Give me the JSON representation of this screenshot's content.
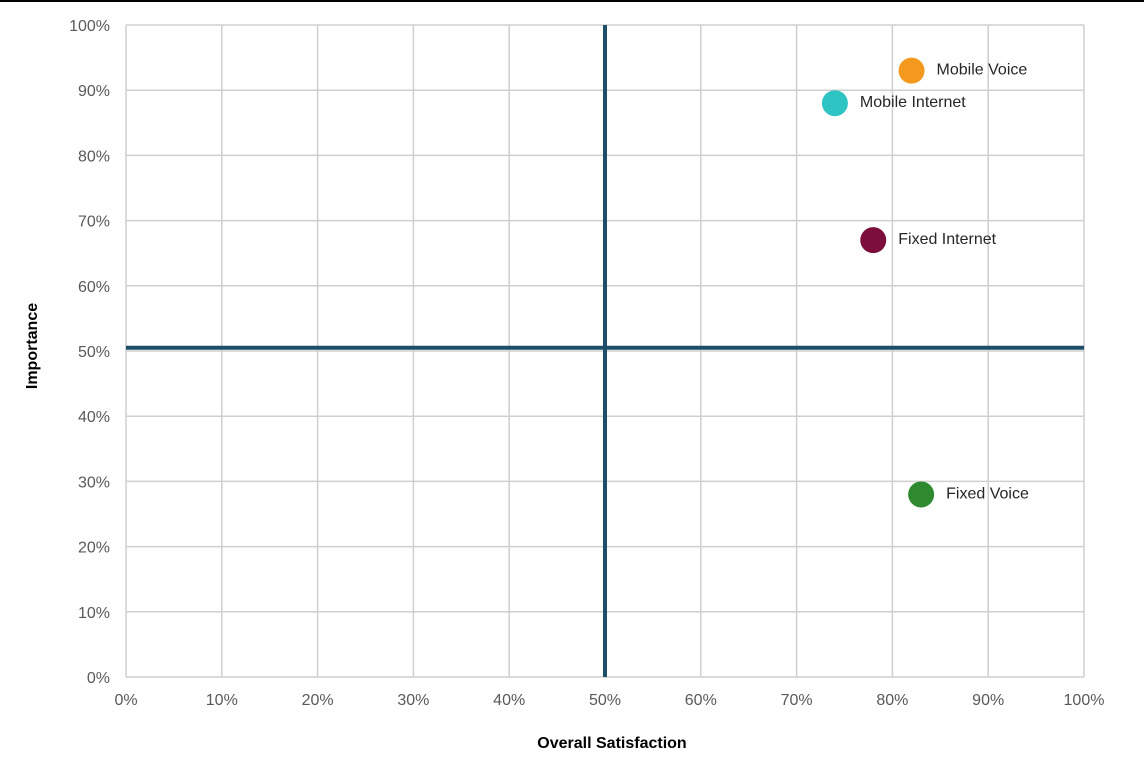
{
  "chart_data": {
    "type": "scatter",
    "title": "",
    "xlabel": "Overall Satisfaction",
    "ylabel": "Importance",
    "xlim": [
      0,
      100
    ],
    "ylim": [
      0,
      100
    ],
    "x_ticks": [
      "0%",
      "10%",
      "20%",
      "30%",
      "40%",
      "50%",
      "60%",
      "70%",
      "80%",
      "90%",
      "100%"
    ],
    "y_ticks": [
      "0%",
      "10%",
      "20%",
      "30%",
      "40%",
      "50%",
      "60%",
      "70%",
      "80%",
      "90%",
      "100%"
    ],
    "grid": true,
    "legend": "none",
    "quadrant_lines": {
      "x": 50,
      "y": 50.5,
      "color": "#1f4e6b"
    },
    "points": [
      {
        "label": "Mobile Voice",
        "x": 82,
        "y": 93,
        "color": "#f39a1e"
      },
      {
        "label": "Mobile Internet",
        "x": 74,
        "y": 88,
        "color": "#2ec4c4"
      },
      {
        "label": "Fixed Internet",
        "x": 78,
        "y": 67,
        "color": "#7b0e3a"
      },
      {
        "label": "Fixed Voice",
        "x": 83,
        "y": 28,
        "color": "#2f8a2f"
      }
    ]
  }
}
